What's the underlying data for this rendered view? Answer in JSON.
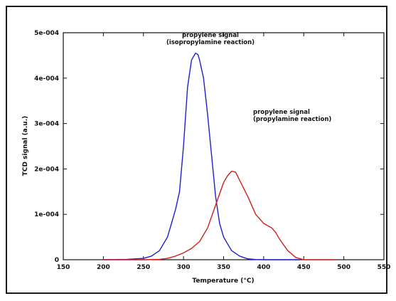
{
  "chart_data": {
    "type": "line",
    "title": "",
    "xlabel": "Temperature (°C)",
    "ylabel": "TCD signal (a.u.)",
    "xlim": [
      150,
      550
    ],
    "ylim": [
      0,
      0.0005
    ],
    "grid": false,
    "x_ticks": [
      "150",
      "200",
      "250",
      "300",
      "350",
      "400",
      "450",
      "500",
      "550"
    ],
    "y_ticks": [
      "0",
      "1e-004",
      "2e-004",
      "3e-004",
      "4e-004",
      "5e-004"
    ],
    "series": [
      {
        "name": "propylene signal (isopropylamine reaction)",
        "color": "#1f1fd0",
        "x": [
          200,
          230,
          250,
          260,
          270,
          280,
          290,
          295,
          300,
          305,
          310,
          315,
          318,
          320,
          325,
          330,
          335,
          340,
          345,
          350,
          355,
          360,
          370,
          380,
          390,
          400,
          420,
          445
        ],
        "y": [
          0,
          1e-06,
          3e-06,
          8e-06,
          2e-05,
          5e-05,
          0.00011,
          0.00015,
          0.00025,
          0.00038,
          0.00044,
          0.000455,
          0.000452,
          0.00044,
          0.0004,
          0.00032,
          0.00023,
          0.00014,
          8e-05,
          5e-05,
          3.5e-05,
          2e-05,
          8e-06,
          2e-06,
          5e-07,
          0,
          0,
          0
        ]
      },
      {
        "name": "propylene signal (propylamine reaction)",
        "color": "#d01f1f",
        "x": [
          200,
          250,
          270,
          280,
          290,
          300,
          310,
          320,
          330,
          340,
          350,
          355,
          360,
          365,
          370,
          380,
          390,
          400,
          410,
          415,
          420,
          430,
          440,
          450,
          470,
          490
        ],
        "y": [
          0,
          0,
          1e-06,
          3e-06,
          8e-06,
          1.5e-05,
          2.5e-05,
          4e-05,
          7e-05,
          0.00012,
          0.00017,
          0.000185,
          0.000195,
          0.000193,
          0.000175,
          0.00014,
          0.0001,
          8e-05,
          7e-05,
          6e-05,
          4.5e-05,
          2e-05,
          5e-06,
          0,
          0,
          0
        ]
      }
    ],
    "annotations": [
      {
        "lines": [
          "propylene signal",
          "(isopropylamine reaction)"
        ]
      },
      {
        "lines": [
          "propylene signal",
          "(propylamine reaction)"
        ]
      }
    ]
  }
}
